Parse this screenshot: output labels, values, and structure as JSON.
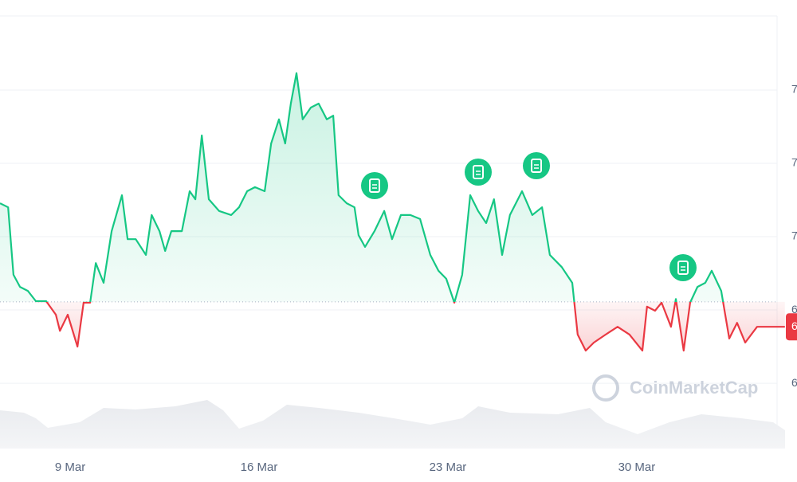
{
  "chart_data": {
    "type": "line",
    "x": [
      6.4,
      6.7,
      6.9,
      7.14,
      7.43,
      7.73,
      8.11,
      8.47,
      8.62,
      8.91,
      9.27,
      9.5,
      9.74,
      9.95,
      10.24,
      10.54,
      10.92,
      11.13,
      11.43,
      11.81,
      12.02,
      12.31,
      12.52,
      12.75,
      13.14,
      13.43,
      13.64,
      13.88,
      14.14,
      14.52,
      14.97,
      15.26,
      15.56,
      15.85,
      16.21,
      16.45,
      16.74,
      16.97,
      17.18,
      17.39,
      17.62,
      17.92,
      18.21,
      18.51,
      18.75,
      18.95,
      19.25,
      19.54,
      19.69,
      19.93,
      20.28,
      20.64,
      20.93,
      21.26,
      21.61,
      21.97,
      22.35,
      22.65,
      22.94,
      23.24,
      23.53,
      23.83,
      24.12,
      24.42,
      24.71,
      25.01,
      25.3,
      25.75,
      26.13,
      26.49,
      26.78,
      27.22,
      27.61,
      27.81,
      28.11,
      28.41,
      28.85,
      29.29,
      29.73,
      30.21,
      30.38,
      30.68,
      30.92,
      31.27,
      31.45,
      31.74,
      31.98,
      32.25,
      32.54,
      32.78,
      33.13,
      33.43,
      33.72,
      34.02,
      34.46,
      34.9,
      35.49
    ],
    "series": [
      {
        "values": [
          7.091,
          7.08,
          6.896,
          6.863,
          6.852,
          6.824,
          6.824,
          6.787,
          6.743,
          6.787,
          6.7,
          6.82,
          6.82,
          6.928,
          6.874,
          7.015,
          7.113,
          6.993,
          6.993,
          6.95,
          7.059,
          7.015,
          6.961,
          7.015,
          7.015,
          7.124,
          7.102,
          7.276,
          7.102,
          7.07,
          7.059,
          7.08,
          7.124,
          7.135,
          7.124,
          7.254,
          7.32,
          7.254,
          7.363,
          7.446,
          7.32,
          7.352,
          7.363,
          7.32,
          7.33,
          7.113,
          7.091,
          7.08,
          7.004,
          6.972,
          7.015,
          7.07,
          6.993,
          7.059,
          7.059,
          7.048,
          6.95,
          6.907,
          6.885,
          6.82,
          6.896,
          7.113,
          7.07,
          7.037,
          7.102,
          6.95,
          7.059,
          7.124,
          7.059,
          7.08,
          6.95,
          6.917,
          6.874,
          6.733,
          6.689,
          6.711,
          6.733,
          6.754,
          6.733,
          6.689,
          6.809,
          6.798,
          6.82,
          6.754,
          6.83,
          6.689,
          6.82,
          6.863,
          6.874,
          6.907,
          6.852,
          6.722,
          6.765,
          6.711,
          6.754,
          6.754,
          6.754
        ]
      }
    ],
    "up_color": "#16c784",
    "down_color": "#ea3943",
    "baseline": 6.822,
    "price_label": {
      "value": 6.754,
      "label": "6"
    },
    "xlim": [
      6.4,
      35.94
    ],
    "ylim": [
      6.422,
      7.602
    ],
    "xticks": [
      {
        "value": 9,
        "label": "9 Mar"
      },
      {
        "value": 16,
        "label": "16 Mar"
      },
      {
        "value": 23,
        "label": "23 Mar"
      },
      {
        "value": 30,
        "label": "30 Mar"
      }
    ],
    "yticks": [
      {
        "value": 7.4,
        "label": "7"
      },
      {
        "value": 7.2,
        "label": "7"
      },
      {
        "value": 7.0,
        "label": "7"
      },
      {
        "value": 6.8,
        "label": "6"
      },
      {
        "value": 6.6,
        "label": "6"
      }
    ],
    "grid": true,
    "watermark": "CoinMarketCap"
  }
}
